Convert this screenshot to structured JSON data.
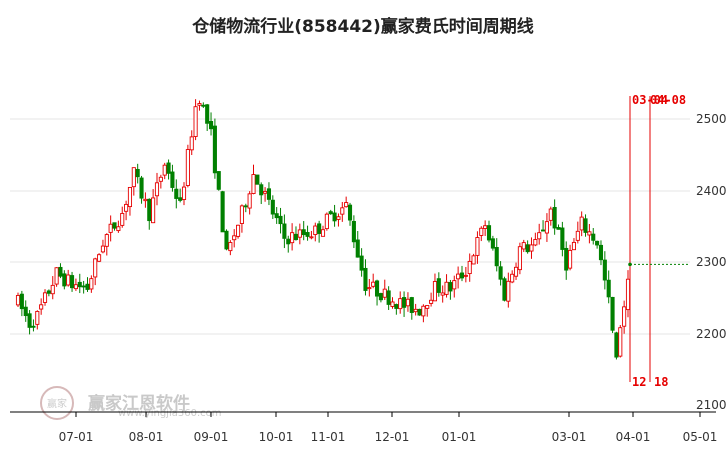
{
  "chart_data": {
    "type": "candlestick",
    "title": "仓储物流行业(858442)赢家费氏时间周期线",
    "xlabel": "",
    "ylabel": "",
    "x_tick_labels": [
      "07-01",
      "08-01",
      "09-01",
      "10-01",
      "11-01",
      "12-01",
      "01-01",
      "03-01",
      "04-01",
      "05-01"
    ],
    "y_ticks": [
      2100,
      2200,
      2300,
      2400,
      2500
    ],
    "ylim": [
      2095,
      2555
    ],
    "grid": true,
    "colors": {
      "up": "#e60000",
      "down": "#008000",
      "marker": "#e60000",
      "current": "#008000"
    },
    "price_path": [
      [
        0,
        2245
      ],
      [
        3,
        2215
      ],
      [
        5,
        2225
      ],
      [
        10,
        2285
      ],
      [
        14,
        2270
      ],
      [
        18,
        2265
      ],
      [
        22,
        2330
      ],
      [
        27,
        2370
      ],
      [
        30,
        2425
      ],
      [
        34,
        2370
      ],
      [
        38,
        2440
      ],
      [
        42,
        2380
      ],
      [
        46,
        2520
      ],
      [
        47,
        2535
      ],
      [
        50,
        2480
      ],
      [
        54,
        2310
      ],
      [
        58,
        2370
      ],
      [
        61,
        2425
      ],
      [
        64,
        2395
      ],
      [
        69,
        2335
      ],
      [
        73,
        2340
      ],
      [
        77,
        2345
      ],
      [
        82,
        2370
      ],
      [
        85,
        2380
      ],
      [
        90,
        2270
      ],
      [
        95,
        2255
      ],
      [
        100,
        2240
      ],
      [
        104,
        2235
      ],
      [
        108,
        2265
      ],
      [
        112,
        2265
      ],
      [
        116,
        2290
      ],
      [
        121,
        2355
      ],
      [
        126,
        2255
      ],
      [
        130,
        2320
      ],
      [
        134,
        2325
      ],
      [
        138,
        2375
      ],
      [
        142,
        2300
      ],
      [
        146,
        2355
      ],
      [
        150,
        2330
      ],
      [
        153,
        2245
      ],
      [
        155,
        2160
      ],
      [
        156,
        2215
      ],
      [
        158,
        2270
      ]
    ],
    "fibonacci_lines": [
      {
        "label": "03-04",
        "days_after": 12
      },
      {
        "label": "04-08",
        "days_after": 18
      }
    ],
    "current_price": 2298
  },
  "watermark": {
    "logo_text": "赢家",
    "text": "赢家江恩软件",
    "url": "www.yingjia360.com"
  }
}
